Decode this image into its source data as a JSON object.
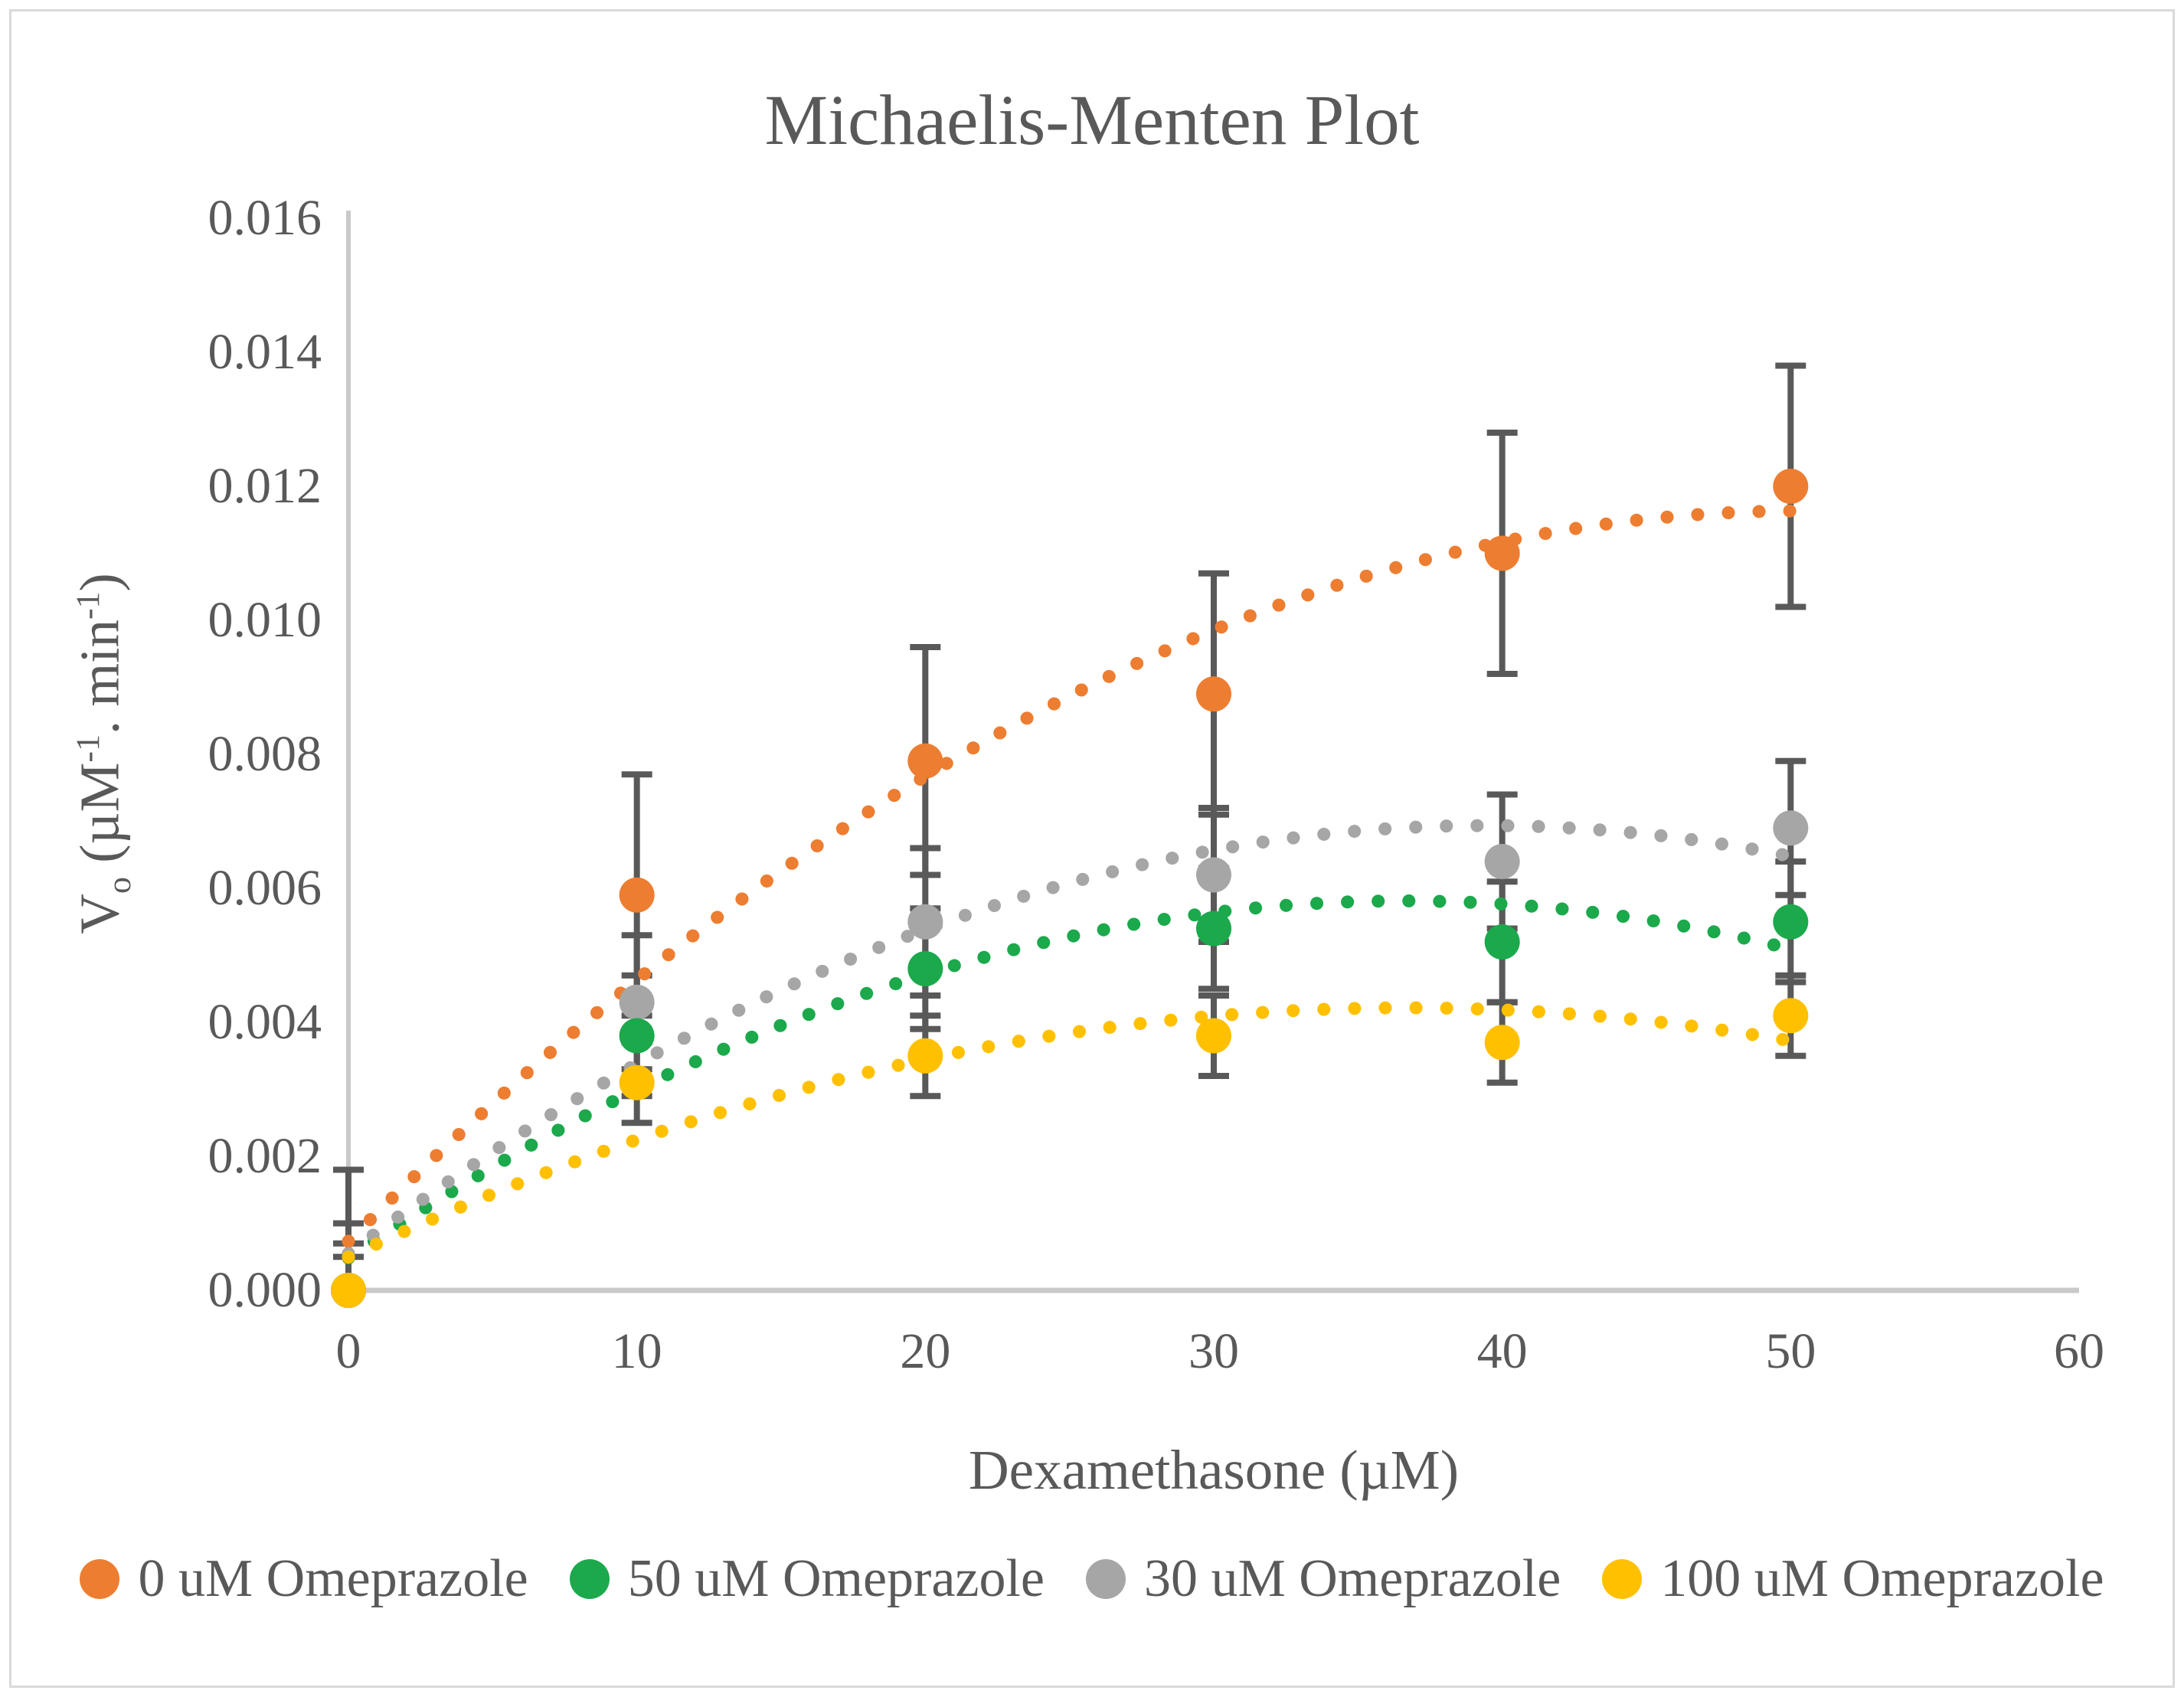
{
  "title": "Michaelis-Menten Plot",
  "ylabel": {
    "v": "V",
    "vsub": "o",
    "open": " (µM",
    "sup1": "-1",
    "mid": ". min",
    "sup2": "-1",
    "close": ")"
  },
  "chart_data": {
    "type": "scatter",
    "title": "Michaelis-Menten Plot",
    "xlabel": "Dexamethasone (µM)",
    "ylabel": "Vo (µM-1. min-1)",
    "x": [
      0,
      10,
      20,
      30,
      40,
      50
    ],
    "xlim": [
      0,
      60
    ],
    "ylim": [
      0,
      0.016
    ],
    "xtick_labels": [
      "0",
      "10",
      "20",
      "30",
      "40",
      "50",
      "60"
    ],
    "ytick_labels": [
      "0.000",
      "0.002",
      "0.004",
      "0.006",
      "0.008",
      "0.010",
      "0.012",
      "0.014",
      "0.016"
    ],
    "grid": false,
    "legend_position": "bottom",
    "trendline": "quadratic-dotted",
    "axis_color": "#c9c9c9",
    "error_bar_color": "#595959",
    "text_color": "#595959",
    "series": [
      {
        "name": "0 uM Omeprazole",
        "color": "#ED7D31",
        "values": [
          0.0,
          0.0059,
          0.0079,
          0.0089,
          0.011,
          0.012
        ],
        "errors": [
          0.0018,
          0.0018,
          0.0017,
          0.0018,
          0.0018,
          0.0018
        ]
      },
      {
        "name": "50 uM Omeprazole",
        "color": "#1BA94C",
        "values": [
          0.0,
          0.0038,
          0.0048,
          0.0054,
          0.0052,
          0.0055
        ],
        "errors": [
          0.0007,
          0.0009,
          0.0009,
          0.0009,
          0.0009,
          0.0009
        ]
      },
      {
        "name": "30 uM Omeprazole",
        "color": "#A6A6A6",
        "values": [
          0.0,
          0.0043,
          0.0055,
          0.0062,
          0.0064,
          0.0069
        ],
        "errors": [
          0.001,
          0.001,
          0.0011,
          0.001,
          0.001,
          0.001
        ]
      },
      {
        "name": "100 uM Omeprazole",
        "color": "#FFC000",
        "values": [
          0.0,
          0.0031,
          0.0035,
          0.0038,
          0.0037,
          0.0041
        ],
        "errors": [
          0.0005,
          0.0006,
          0.0006,
          0.0006,
          0.0006,
          0.0006
        ]
      }
    ]
  }
}
